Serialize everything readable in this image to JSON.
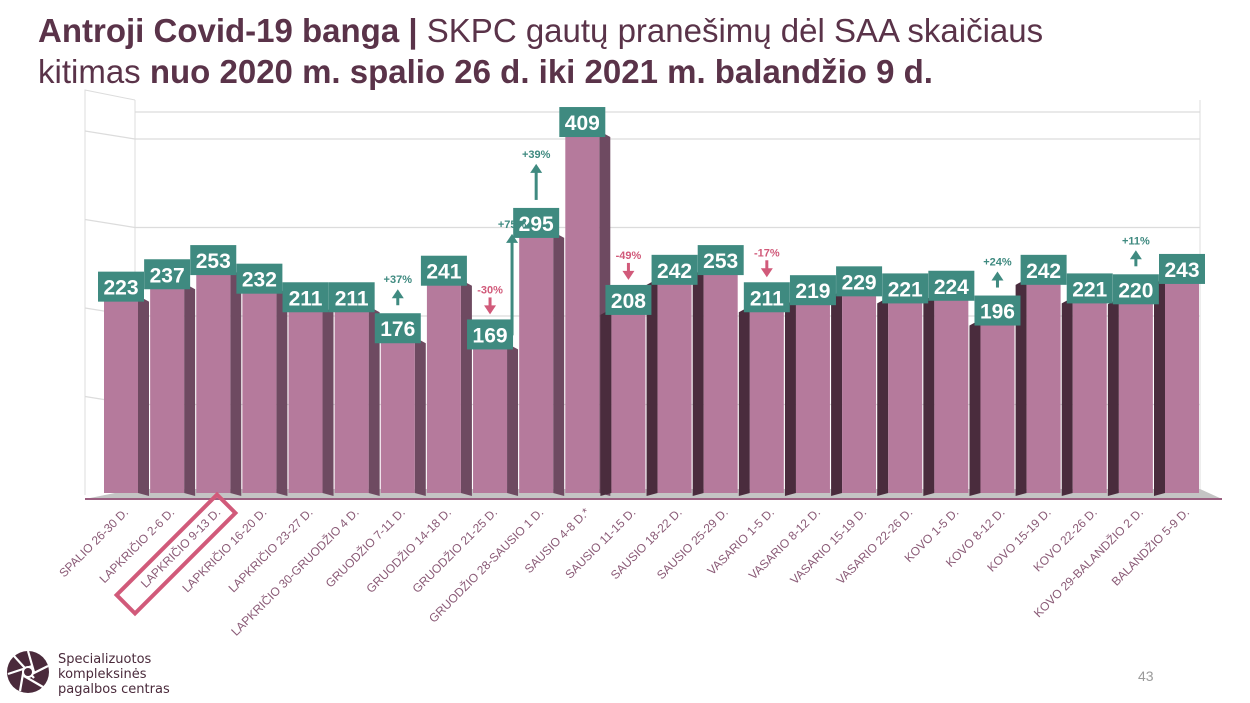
{
  "title": {
    "line1_bold": "Antroji Covid-19 banga |",
    "line1_normal": "SKPC gautų pranešimų  dėl SAA skaičiaus",
    "line2_normal": "kitimas",
    "line2_bold": "nuo 2020 m. spalio 26 d. iki 2021 m. balandžio 9 d."
  },
  "chart_data": {
    "type": "bar",
    "title": "SKPC gautų pranešimų dėl SAA skaičiaus kitimas",
    "xlabel": "",
    "ylabel": "",
    "ylim": [
      0,
      450
    ],
    "grid": true,
    "style": "3d-column",
    "categories": [
      "SPALIO 26-30 D.",
      "LAPKRIČIO 2-6 D.",
      "LAPKRIČIO 9-13 D.",
      "LAPKRIČIO 16-20 D.",
      "LAPKRIČIO 23-27 D.",
      "LAPKRIČIO 30-GRUODŽIO 4 D.",
      "GRUODŽIO 7-11 D.",
      "GRUODŽIO  14-18 D.",
      "GRUODŽIO  21-25 D.",
      "GRUODŽIO  28-SAUSIO 1 D.",
      "SAUSIO 4-8 D.*",
      "SAUSIO 11-15 D.",
      "SAUSIO 18-22 D.",
      "SAUSIO 25-29 D.",
      "VASARIO 1-5 D.",
      "VASARIO 8-12 D.",
      "VASARIO 15-19 D.",
      "VASARIO 22-26 D.",
      "KOVO 1-5 D.",
      "KOVO 8-12 D.",
      "KOVO 15-19 D.",
      "KOVO 22-26 D.",
      "KOVO 29-BALANDŽIO 2 D.",
      "BALANDŽIO 5-9 D."
    ],
    "values": [
      223,
      237,
      253,
      232,
      211,
      211,
      176,
      241,
      169,
      295,
      409,
      208,
      242,
      253,
      211,
      219,
      229,
      221,
      224,
      196,
      242,
      221,
      220,
      243
    ],
    "data_labels": [
      "223",
      "237",
      "253",
      "232",
      "211",
      "211",
      "176",
      "241",
      "169",
      "295",
      "409",
      "208",
      "242",
      "253",
      "211",
      "219",
      "229",
      "221",
      "224",
      "196",
      "242",
      "221",
      "220",
      "243"
    ],
    "highlighted_category": "LAPKRIČIO 9-13 D.",
    "annotations": [
      {
        "category_index": 6,
        "text": "+37%",
        "direction": "up",
        "color": "#3f8a80"
      },
      {
        "category_index": 8,
        "text": "-30%",
        "direction": "down",
        "color": "#d15a7a"
      },
      {
        "category_index": 8,
        "text": "+75%",
        "direction": "up",
        "color": "#3f8a80",
        "tall": true
      },
      {
        "category_index": 9,
        "text": "+39%",
        "direction": "up",
        "color": "#3f8a80"
      },
      {
        "category_index": 11,
        "text": "-49%",
        "direction": "down",
        "color": "#d15a7a"
      },
      {
        "category_index": 14,
        "text": "-17%",
        "direction": "down",
        "color": "#d15a7a"
      },
      {
        "category_index": 19,
        "text": "+24%",
        "direction": "up",
        "color": "#3f8a80"
      },
      {
        "category_index": 22,
        "text": "+11%",
        "direction": "up",
        "color": "#3f8a80"
      }
    ],
    "colors": {
      "bar_front": "#b57a9c",
      "bar_side_left": "#6e4a61",
      "bar_side_right": "#4a2c3d",
      "label_bg": "#3f8a80",
      "label_text": "#ffffff",
      "axis_text": "#8a5a76",
      "highlight": "#d15a7a",
      "grid": "#dcdcdc",
      "floor": "#c4c4c4"
    }
  },
  "logo": {
    "line1": "Specializuotos",
    "line2": "kompleksinės",
    "line3": "pagalbos centras"
  },
  "page_number": "43"
}
